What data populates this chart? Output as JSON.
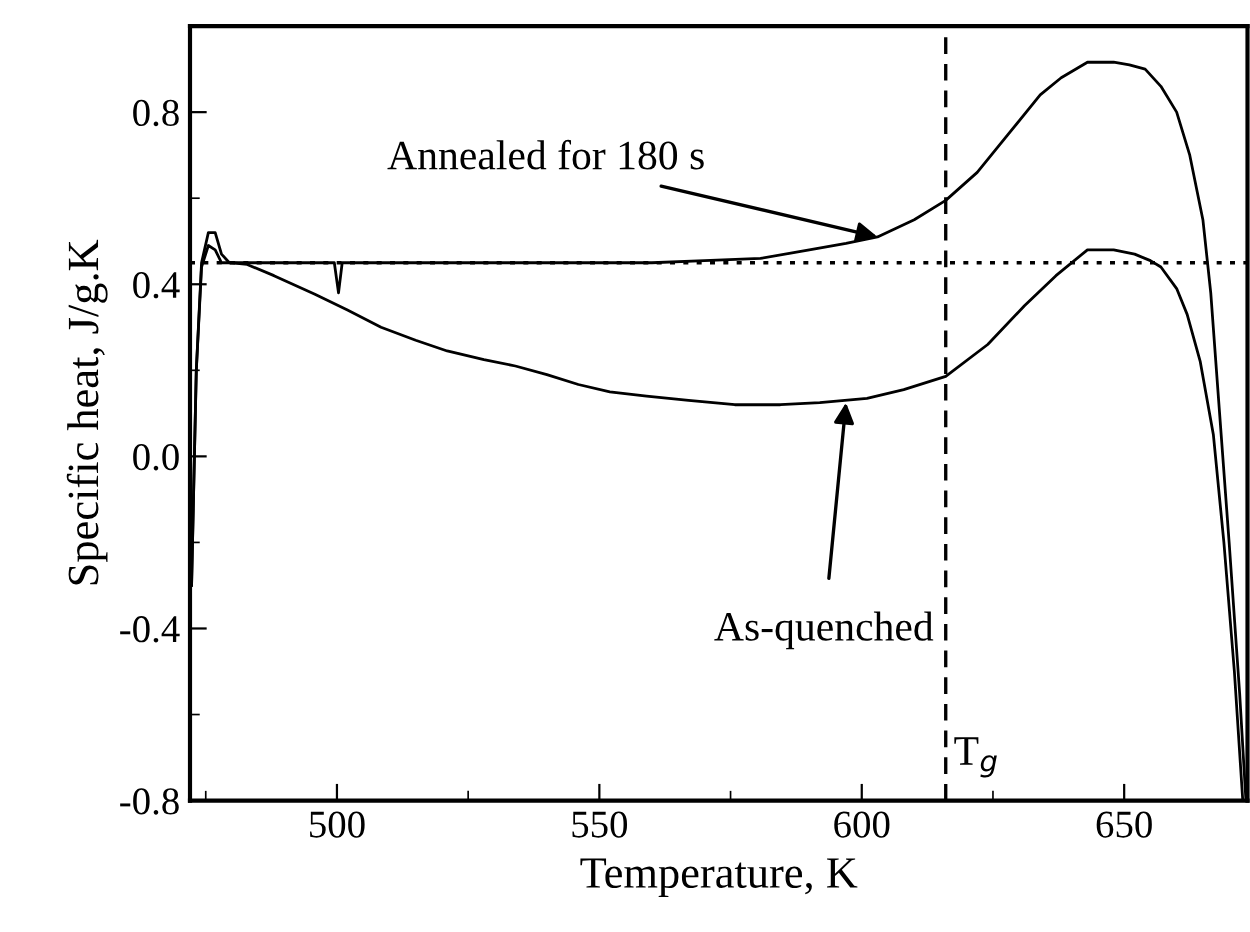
{
  "chart_data": {
    "type": "line",
    "xlabel": "Temperature, K",
    "ylabel": "Specific heat, J/g.K",
    "xlim": [
      472,
      673.5
    ],
    "xticks": [
      500,
      550,
      600,
      650
    ],
    "ylim": [
      -0.8,
      1.0
    ],
    "yticks": [
      {
        "value": -0.8,
        "label": "-0.8"
      },
      {
        "value": -0.4,
        "label": "-0.4"
      },
      {
        "value": 0.0,
        "label": "0.0"
      },
      {
        "value": 0.4,
        "label": "0.4"
      },
      {
        "value": 0.8,
        "label": "0.8"
      }
    ],
    "grid": false,
    "marker": "none",
    "line_style": "solid",
    "series": [
      {
        "color": "#000000",
        "x": [
          472.3,
          473.2,
          474.2,
          475.5,
          476.8,
          478,
          479.5,
          485,
          490,
          495,
          499.5,
          500.3,
          501,
          510,
          520,
          530,
          540,
          550,
          560,
          570,
          580.7,
          590,
          597,
          603,
          610,
          616,
          622,
          628,
          634,
          638,
          643,
          648,
          651,
          654,
          657,
          660,
          662.5,
          665,
          666.5,
          668,
          670,
          672,
          673.2
        ],
        "values": [
          -0.3,
          0.2,
          0.45,
          0.52,
          0.52,
          0.47,
          0.45,
          0.45,
          0.45,
          0.45,
          0.45,
          0.38,
          0.45,
          0.45,
          0.45,
          0.45,
          0.45,
          0.45,
          0.45,
          0.455,
          0.46,
          0.48,
          0.495,
          0.51,
          0.55,
          0.595,
          0.66,
          0.75,
          0.84,
          0.88,
          0.916,
          0.916,
          0.91,
          0.9,
          0.86,
          0.8,
          0.7,
          0.55,
          0.38,
          0.13,
          -0.2,
          -0.55,
          -0.8
        ]
      },
      {
        "color": "#000000",
        "x": [
          472.3,
          473.2,
          474.2,
          475.5,
          476.8,
          478,
          480,
          482.9,
          488,
          495.8,
          502,
          508.4,
          515,
          521,
          528,
          534,
          540,
          546,
          552,
          559,
          567,
          575.8,
          584.5,
          592,
          601,
          608,
          616,
          624,
          631,
          637,
          643,
          648,
          652,
          655,
          657,
          660,
          662,
          664.5,
          667,
          669,
          671,
          672.6
        ],
        "values": [
          -0.3,
          0.2,
          0.44,
          0.49,
          0.48,
          0.45,
          0.45,
          0.446,
          0.42,
          0.377,
          0.34,
          0.3,
          0.27,
          0.245,
          0.225,
          0.21,
          0.19,
          0.167,
          0.15,
          0.14,
          0.13,
          0.12,
          0.12,
          0.125,
          0.135,
          0.155,
          0.186,
          0.26,
          0.35,
          0.42,
          0.48,
          0.48,
          0.47,
          0.455,
          0.44,
          0.39,
          0.33,
          0.22,
          0.05,
          -0.2,
          -0.5,
          -0.8
        ]
      }
    ],
    "ref_lines": [
      {
        "axis": "x",
        "value": 616,
        "label": "T$_{g}$",
        "line_style": "dashed",
        "color": "#000000"
      },
      {
        "axis": "y",
        "value": 0.45,
        "label": null,
        "line_style": "dotted",
        "color": "#000000"
      }
    ],
    "annotations": [
      {
        "text": "Annealed for 180 s",
        "x": 603,
        "y": 0.51
      },
      {
        "text": "As-quenched",
        "x": 597,
        "y": 0.125
      }
    ]
  }
}
